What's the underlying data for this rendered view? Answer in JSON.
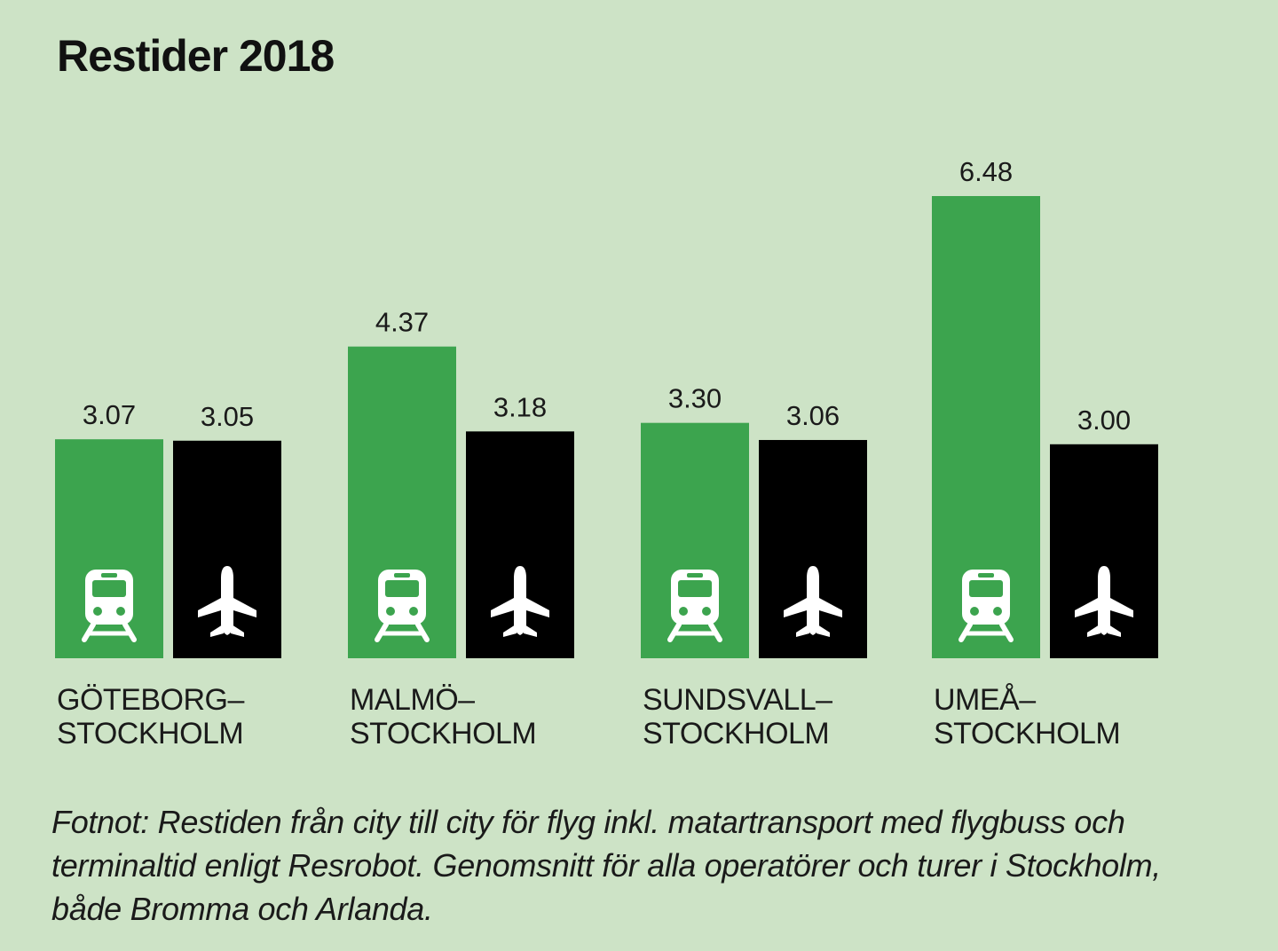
{
  "chart_data": {
    "type": "bar",
    "title": "Restider 2018",
    "categories": [
      [
        "GÖTEBORG–",
        "STOCKHOLM"
      ],
      [
        "MALMÖ–",
        "STOCKHOLM"
      ],
      [
        "SUNDSVALL–",
        "STOCKHOLM"
      ],
      [
        "UMEÅ–",
        "STOCKHOLM"
      ]
    ],
    "series": [
      {
        "icon": "train-icon",
        "color": "#3ca44e",
        "values": [
          3.07,
          4.37,
          3.3,
          6.48
        ],
        "labels": [
          "3.07",
          "4.37",
          "3.30",
          "6.48"
        ]
      },
      {
        "icon": "airplane-icon",
        "color": "#000000",
        "values": [
          3.05,
          3.18,
          3.06,
          3.0
        ],
        "labels": [
          "3.05",
          "3.18",
          "3.06",
          "3.00"
        ]
      }
    ],
    "ylim": [
      0,
      6.48
    ],
    "grid": false,
    "legend": "none"
  },
  "footnote": "Fotnot: Restiden från city till city för flyg inkl. matartransport med flygbuss och terminaltid enligt Resrobot. Genomsnitt för alla operatörer och turer i Stockholm, både Bromma och Arlanda."
}
